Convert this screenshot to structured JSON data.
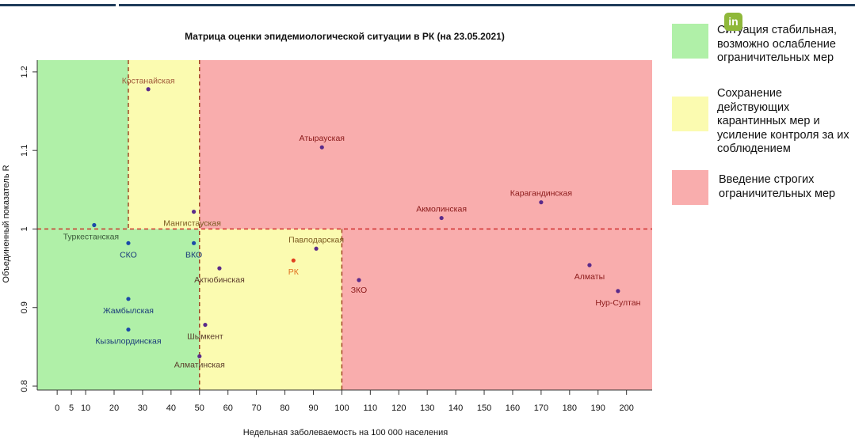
{
  "chart_data": {
    "type": "scatter",
    "title": "Матрица оценки эпидемиологической ситуации в РК (на 23.05.2021)",
    "xlabel": "Недельная заболеваемость на 100 000 населения",
    "ylabel": "Объединенный показатель R",
    "xlim": [
      -7,
      209
    ],
    "ylim": [
      0.795,
      1.215
    ],
    "x_ticks": [
      0,
      5,
      10,
      20,
      30,
      40,
      50,
      60,
      70,
      80,
      90,
      100,
      110,
      120,
      130,
      140,
      150,
      160,
      170,
      180,
      190,
      200
    ],
    "y_ticks": [
      0.8,
      0.9,
      1.0,
      1.1,
      1.2
    ],
    "thresholds": {
      "x": [
        25,
        50,
        100
      ],
      "y": 1.0
    },
    "zone_colors": {
      "green": "#b0f0a8",
      "yellow": "#fbfbb0",
      "red": "#f9adad"
    },
    "points": [
      {
        "name": "Костанайская",
        "x": 32,
        "y": 1.178,
        "label_color": "#a05a3a",
        "dot": "#5a2a8a"
      },
      {
        "name": "Атырауская",
        "x": 93,
        "y": 1.104,
        "label_color": "#8b1a1a",
        "dot": "#5a2a8a"
      },
      {
        "name": "Карагандинская",
        "x": 170,
        "y": 1.034,
        "label_color": "#8b1a1a",
        "dot": "#5a2a8a"
      },
      {
        "name": "Акмолинская",
        "x": 135,
        "y": 1.014,
        "label_color": "#8b1a1a",
        "dot": "#5a2a8a"
      },
      {
        "name": "Мангистауская",
        "x": 48,
        "y": 1.022,
        "label_color": "#7a5a20",
        "dot": "#5a2a8a"
      },
      {
        "name": "Туркестанская",
        "x": 13,
        "y": 1.005,
        "label_color": "#3a5a3a",
        "dot": "#1a4aa8"
      },
      {
        "name": "СКО",
        "x": 25,
        "y": 0.982,
        "label_color": "#1a3a7a",
        "dot": "#1a4aa8"
      },
      {
        "name": "ВКО",
        "x": 48,
        "y": 0.982,
        "label_color": "#1a3a7a",
        "dot": "#1a4aa8"
      },
      {
        "name": "Павлодарская",
        "x": 91,
        "y": 0.975,
        "label_color": "#7a5a20",
        "dot": "#5a2a8a"
      },
      {
        "name": "РК",
        "x": 83,
        "y": 0.96,
        "label_color": "#e07020",
        "dot": "#e04020"
      },
      {
        "name": "Актюбинская",
        "x": 57,
        "y": 0.95,
        "label_color": "#5a3a2a",
        "dot": "#5a2a8a"
      },
      {
        "name": "Алматы",
        "x": 187,
        "y": 0.954,
        "label_color": "#8b1a1a",
        "dot": "#5a2a8a"
      },
      {
        "name": "ЗКО",
        "x": 106,
        "y": 0.935,
        "label_color": "#8b1a1a",
        "dot": "#5a2a8a"
      },
      {
        "name": "Нур-Султан",
        "x": 197,
        "y": 0.921,
        "label_color": "#8b1a1a",
        "dot": "#5a2a8a"
      },
      {
        "name": "Жамбылская",
        "x": 25,
        "y": 0.911,
        "label_color": "#1a3a7a",
        "dot": "#1a4aa8"
      },
      {
        "name": "Кызылординская",
        "x": 25,
        "y": 0.872,
        "label_color": "#1a3a7a",
        "dot": "#1a4aa8"
      },
      {
        "name": "Шымкент",
        "x": 52,
        "y": 0.878,
        "label_color": "#5a3a2a",
        "dot": "#5a2a8a"
      },
      {
        "name": "Алматинская",
        "x": 50,
        "y": 0.838,
        "label_color": "#5a3a2a",
        "dot": "#5a2a8a"
      }
    ]
  },
  "legend": [
    {
      "text": "Ситуация стабильная, возможно ослабление ограничительных мер",
      "color": "#b0f0a8"
    },
    {
      "text": "Сохранение действующих карантинных мер и усиление контроля за их соблюдением",
      "color": "#fbfbb0"
    },
    {
      "text": "Введение строгих ограничительных мер",
      "color": "#f9adad"
    }
  ],
  "badge": {
    "text": "in",
    "icon": "linkedin-icon"
  }
}
